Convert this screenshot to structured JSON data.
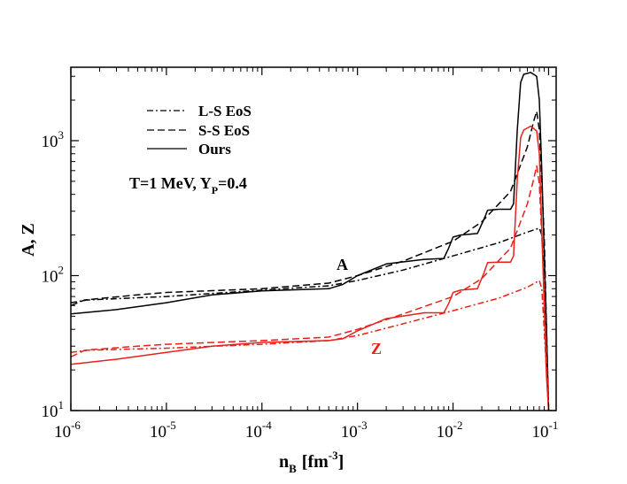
{
  "chart_data": {
    "type": "line",
    "xscale": "log",
    "yscale": "log",
    "xlabel": "n",
    "xlabel_sub": "B",
    "xlabel_unit": "[fm",
    "xlabel_unit_sup": "-3",
    "xlabel_unit_close": "]",
    "ylabel": "A, Z",
    "xlim": [
      1e-06,
      0.12
    ],
    "ylim": [
      10,
      3500
    ],
    "x_ticks": [
      {
        "value": 1e-06,
        "base": "10",
        "exp": "-6"
      },
      {
        "value": 1e-05,
        "base": "10",
        "exp": "-5"
      },
      {
        "value": 0.0001,
        "base": "10",
        "exp": "-4"
      },
      {
        "value": 0.001,
        "base": "10",
        "exp": "-3"
      },
      {
        "value": 0.01,
        "base": "10",
        "exp": "-2"
      },
      {
        "value": 0.1,
        "base": "10",
        "exp": "-1"
      }
    ],
    "y_ticks": [
      {
        "value": 10,
        "base": "10",
        "exp": "1"
      },
      {
        "value": 100,
        "base": "10",
        "exp": "2"
      },
      {
        "value": 1000,
        "base": "10",
        "exp": "3"
      }
    ],
    "annotation": {
      "main": "T=1 MeV, Y",
      "sub": "P",
      "tail": "=0.4"
    },
    "label_A": "A",
    "label_Z": "Z",
    "legend": [
      {
        "label": "L-S EoS",
        "style": "dashdot"
      },
      {
        "label": "S-S EoS",
        "style": "dash"
      },
      {
        "label": "Ours",
        "style": "solid"
      }
    ],
    "series": [
      {
        "name": "A L-S EoS",
        "group": "A",
        "color": "#000000",
        "style": "dashdot",
        "x": [
          1e-06,
          1.5e-06,
          1e-05,
          0.0001,
          0.0005,
          0.001,
          0.003,
          0.01,
          0.03,
          0.06,
          0.08,
          0.085,
          0.09,
          0.1
        ],
        "y": [
          63,
          66,
          70,
          78,
          84,
          92,
          110,
          140,
          175,
          210,
          225,
          200,
          100,
          10
        ]
      },
      {
        "name": "A S-S EoS",
        "group": "A",
        "color": "#000000",
        "style": "dash",
        "x": [
          1e-06,
          1.4e-06,
          5e-06,
          1e-05,
          0.0001,
          0.0005,
          0.001,
          0.003,
          0.01,
          0.02,
          0.04,
          0.06,
          0.07,
          0.075,
          0.08,
          0.09,
          0.1
        ],
        "y": [
          60,
          66,
          72,
          75,
          80,
          88,
          100,
          128,
          180,
          250,
          420,
          900,
          1400,
          1650,
          1200,
          200,
          10
        ]
      },
      {
        "name": "A Ours",
        "group": "A",
        "color": "#000000",
        "style": "solid",
        "x": [
          1e-06,
          3e-06,
          1e-05,
          3e-05,
          0.0001,
          0.0005,
          0.0007,
          0.001,
          0.002,
          0.005,
          0.008,
          0.009,
          0.01,
          0.012,
          0.018,
          0.021,
          0.023,
          0.03,
          0.04,
          0.043,
          0.047,
          0.051,
          0.055,
          0.065,
          0.075,
          0.08,
          0.085,
          0.09,
          0.095,
          0.1
        ],
        "y": [
          52,
          56,
          63,
          72,
          77,
          80,
          86,
          100,
          122,
          132,
          134,
          160,
          193,
          200,
          205,
          260,
          305,
          310,
          310,
          340,
          1200,
          2700,
          3100,
          3200,
          3000,
          2000,
          600,
          150,
          40,
          10
        ]
      },
      {
        "name": "Z L-S EoS",
        "group": "Z",
        "color": "#e8201a",
        "style": "dashdot",
        "x": [
          1e-06,
          1.5e-06,
          1e-05,
          0.0001,
          0.0005,
          0.001,
          0.003,
          0.01,
          0.03,
          0.06,
          0.08,
          0.085,
          0.09,
          0.1
        ],
        "y": [
          27,
          28,
          29,
          31,
          33,
          36,
          44,
          55,
          68,
          82,
          92,
          80,
          40,
          10
        ]
      },
      {
        "name": "Z S-S EoS",
        "group": "Z",
        "color": "#e8201a",
        "style": "dash",
        "x": [
          1e-06,
          1.4e-06,
          5e-06,
          1e-05,
          0.0001,
          0.0005,
          0.001,
          0.003,
          0.01,
          0.02,
          0.04,
          0.06,
          0.07,
          0.075,
          0.08,
          0.09,
          0.1
        ],
        "y": [
          25,
          28,
          30,
          31,
          33,
          35,
          40,
          52,
          70,
          95,
          160,
          340,
          520,
          650,
          480,
          80,
          10
        ]
      },
      {
        "name": "Z Ours",
        "group": "Z",
        "color": "#e8201a",
        "style": "solid",
        "x": [
          1e-06,
          3e-06,
          1e-05,
          3e-05,
          0.0001,
          0.0005,
          0.0007,
          0.001,
          0.002,
          0.005,
          0.008,
          0.009,
          0.01,
          0.012,
          0.018,
          0.021,
          0.023,
          0.03,
          0.04,
          0.043,
          0.047,
          0.051,
          0.055,
          0.065,
          0.075,
          0.08,
          0.085,
          0.09,
          0.095,
          0.1
        ],
        "y": [
          22,
          24,
          27,
          30,
          32,
          33,
          34,
          39,
          48,
          53,
          53,
          62,
          75,
          78,
          80,
          104,
          125,
          126,
          126,
          140,
          520,
          1050,
          1200,
          1280,
          1180,
          800,
          220,
          60,
          18,
          10
        ]
      }
    ]
  }
}
